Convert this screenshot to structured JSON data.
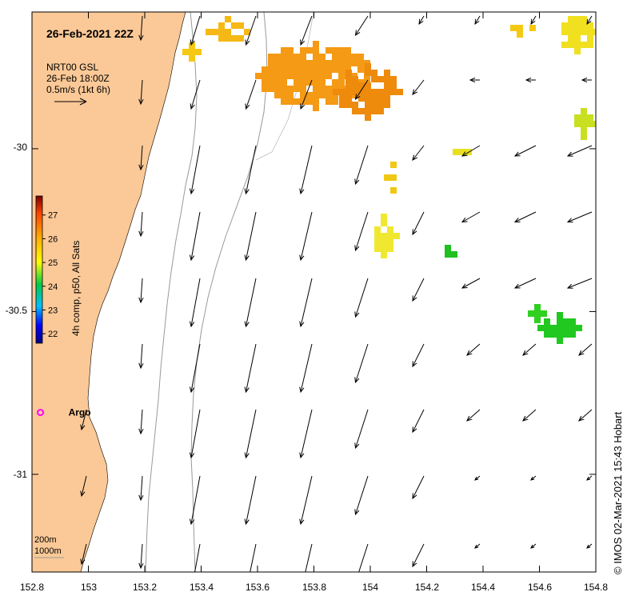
{
  "map": {
    "title": "26-Feb-2021 22Z",
    "current_source": "NRT00 GSL",
    "current_time": "26-Feb 18:00Z",
    "arrow_scale": "0.5m/s (1kt 6h)",
    "colorbar_label": "4h comp, p50, All Sats",
    "colorbar_ticks": [
      "22",
      "23",
      "24",
      "25",
      "26",
      "27"
    ],
    "colorbar_range": [
      21.6,
      27.8
    ],
    "marker_label": "Argo",
    "marker_position": {
      "lon": 152.83,
      "lat": -30.81
    },
    "contour_labels": [
      "200m",
      "1000m"
    ],
    "credit": "© IMOS 02-Mar-2021 15:43 Hobart",
    "x_ticks": [
      "152.8",
      "153",
      "153.2",
      "153.4",
      "153.6",
      "153.8",
      "154",
      "154.2",
      "154.4",
      "154.6",
      "154.8"
    ],
    "y_ticks": [
      "-30",
      "-30.5",
      "-31"
    ],
    "lon_range": [
      152.8,
      154.8
    ],
    "lat_range": [
      -31.3,
      -29.58
    ],
    "colors": {
      "land": "#fbc997",
      "arrow": "#000000",
      "marker": "#ff00ff",
      "isobath": "#999999"
    }
  }
}
